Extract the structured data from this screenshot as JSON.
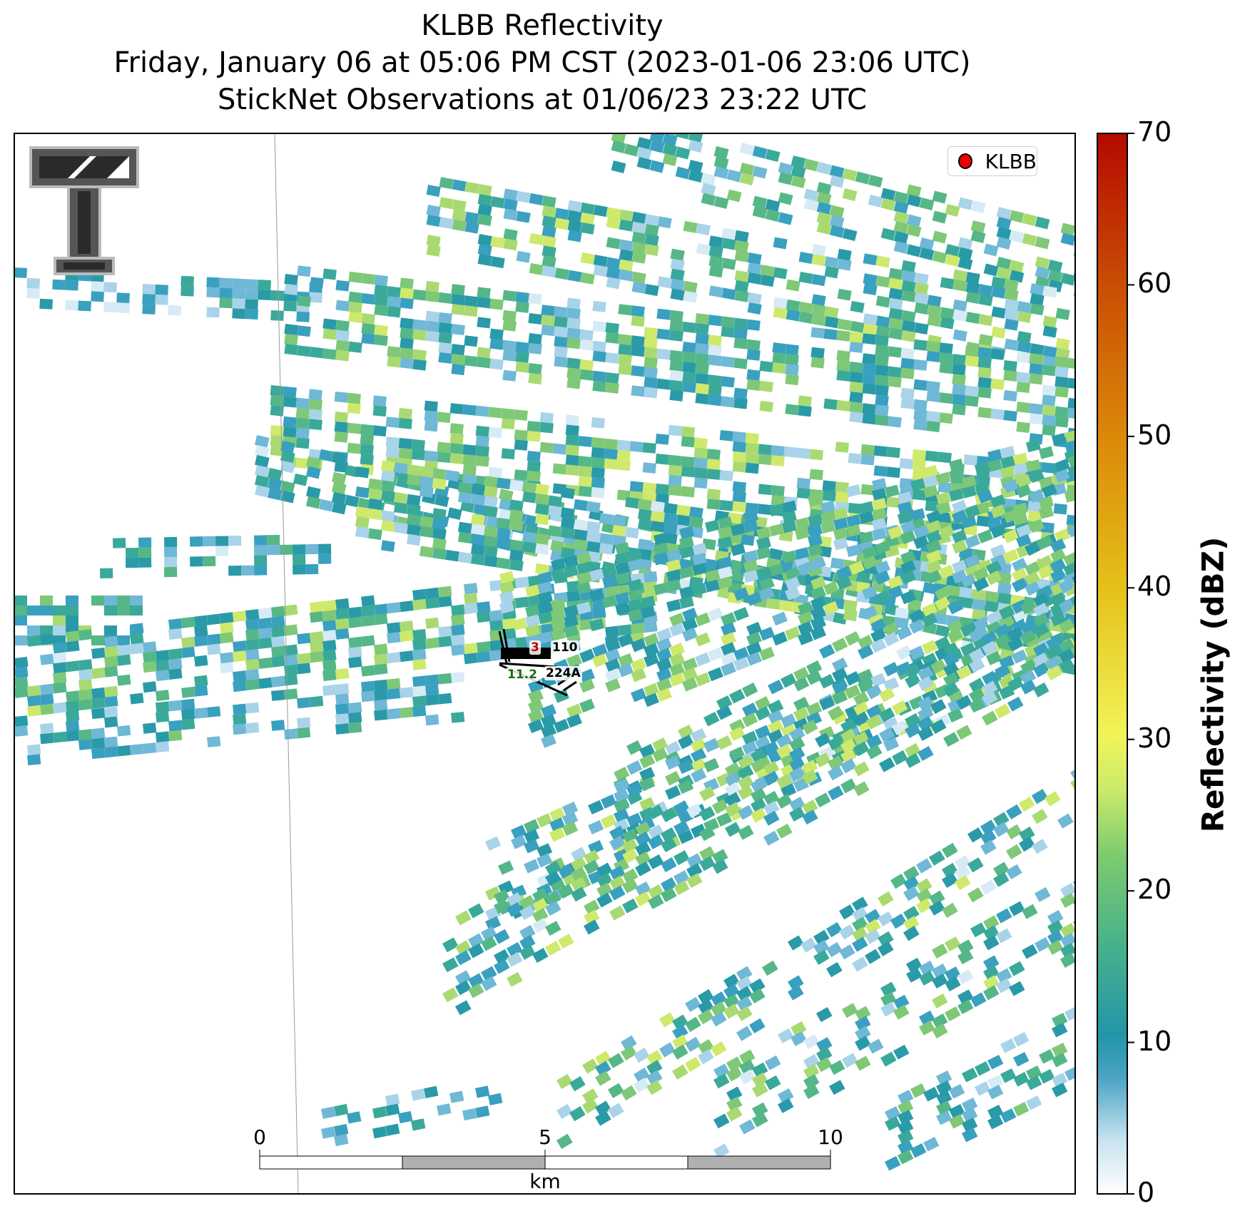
{
  "title": {
    "line1": "KLBB Reflectivity",
    "line2": "Friday, January 06 at 05:06 PM CST (2023-01-06 23:06 UTC)",
    "line3": "StickNet Observations at 01/06/23 23:22 UTC"
  },
  "legend": {
    "label": "KLBB",
    "marker_color": "#e00000"
  },
  "colorbar": {
    "label": "Reflectivity (dBZ)",
    "ticks": [
      "0",
      "10",
      "20",
      "30",
      "40",
      "50",
      "60",
      "70"
    ],
    "min": 0,
    "max": 70,
    "colors": [
      "#ffffff",
      "#bcdcec",
      "#4aa3c4",
      "#2196a8",
      "#4bb38a",
      "#7ecb6e",
      "#d8ef6a",
      "#f5f55a",
      "#e6c11a",
      "#dc8a0a",
      "#c94c04",
      "#b40a00"
    ]
  },
  "scalebar": {
    "unit": "km",
    "ticks": [
      "0",
      "5",
      "10"
    ]
  },
  "stations": [
    {
      "id": "110",
      "color": "#000000"
    },
    {
      "id": "224A",
      "color": "#000000"
    },
    {
      "id": "11.2",
      "color": "#1a6b12"
    },
    {
      "id": "3",
      "color": "#c00000"
    }
  ],
  "logo": {
    "icon": "texas-tech-double-t-logo"
  }
}
